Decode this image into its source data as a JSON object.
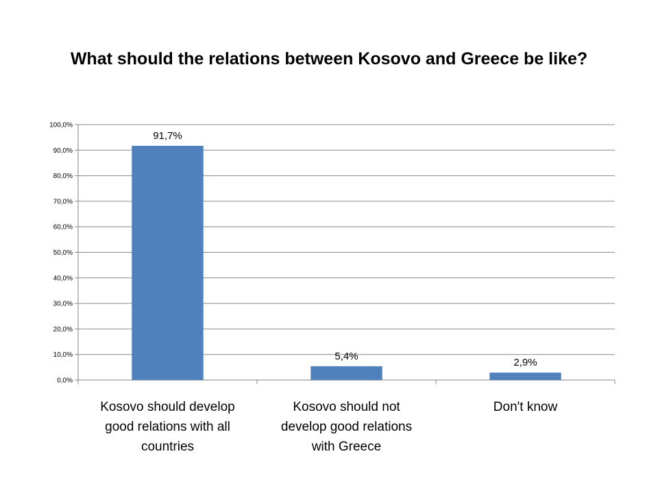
{
  "chart_data": {
    "type": "bar",
    "title": "What should the relations between Kosovo and Greece be like?",
    "categories": [
      [
        "Kosovo should develop",
        "good relations with all",
        "countries"
      ],
      [
        "Kosovo should not",
        "develop good relations",
        "with Greece"
      ],
      [
        "Don't know"
      ]
    ],
    "values": [
      91.7,
      5.4,
      2.9
    ],
    "data_labels": [
      "91,7%",
      "5,4%",
      "2,9%"
    ],
    "ylim": [
      0,
      100
    ],
    "yticks": [
      0,
      10,
      20,
      30,
      40,
      50,
      60,
      70,
      80,
      90,
      100
    ],
    "ytick_labels": [
      "0,0%",
      "10,0%",
      "20,0%",
      "30,0%",
      "40,0%",
      "50,0%",
      "60,0%",
      "70,0%",
      "80,0%",
      "90,0%",
      "100,0%"
    ],
    "grid": true,
    "legend": "none",
    "bar_color": "#4f81bd",
    "grid_color": "#868686"
  }
}
